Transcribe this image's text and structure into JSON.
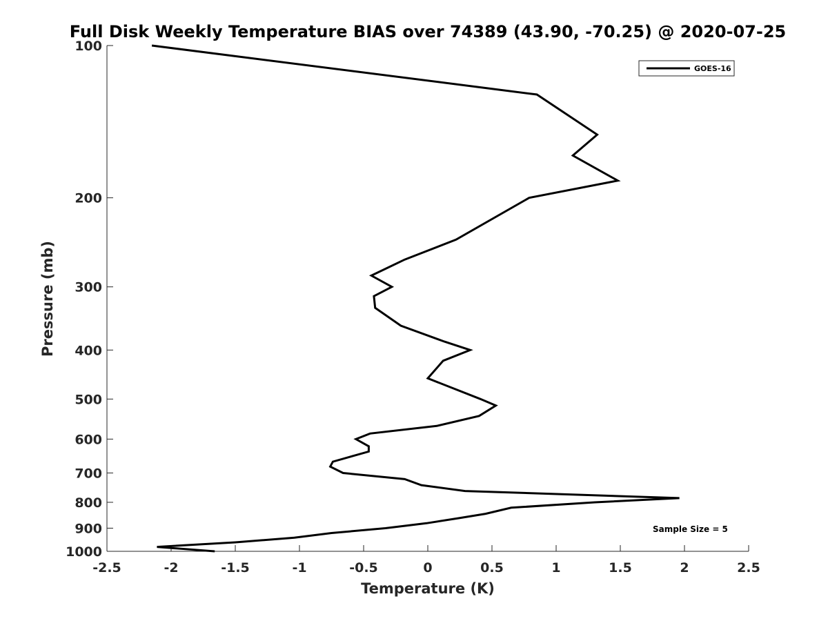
{
  "chart_data": {
    "type": "line",
    "title": "Full Disk Weekly Temperature BIAS over 74389 (43.90, -70.25) @ 2020-07-25",
    "xlabel": "Temperature (K)",
    "ylabel": "Pressure (mb)",
    "xlim": [
      -2.5,
      2.5
    ],
    "ylim": [
      100,
      1000
    ],
    "y_scale": "log",
    "y_reversed": true,
    "grid": false,
    "x_ticks": [
      -2.5,
      -2,
      -1.5,
      -1,
      -0.5,
      0,
      0.5,
      1,
      1.5,
      2,
      2.5
    ],
    "x_tick_labels": [
      "-2.5",
      "-2",
      "-1.5",
      "-1",
      "-0.5",
      "0",
      "0.5",
      "1",
      "1.5",
      "2",
      "2.5"
    ],
    "y_ticks": [
      100,
      200,
      300,
      400,
      500,
      600,
      700,
      800,
      900,
      1000
    ],
    "y_tick_labels": [
      "100",
      "200",
      "300",
      "400",
      "500",
      "600",
      "700",
      "800",
      "900",
      "1000"
    ],
    "legend": {
      "placement": "top-right",
      "entries": [
        "GOES-16"
      ]
    },
    "annotation": "Sample Size = 5",
    "series": [
      {
        "name": "GOES-16",
        "color": "#000000",
        "points": [
          {
            "x": -2.15,
            "y": 100
          },
          {
            "x": 0.85,
            "y": 125
          },
          {
            "x": 1.32,
            "y": 150
          },
          {
            "x": 1.13,
            "y": 165
          },
          {
            "x": 1.48,
            "y": 185
          },
          {
            "x": 0.79,
            "y": 200
          },
          {
            "x": 0.22,
            "y": 242
          },
          {
            "x": -0.18,
            "y": 265
          },
          {
            "x": -0.44,
            "y": 285
          },
          {
            "x": -0.28,
            "y": 300
          },
          {
            "x": -0.42,
            "y": 313
          },
          {
            "x": -0.41,
            "y": 330
          },
          {
            "x": -0.21,
            "y": 358
          },
          {
            "x": 0.13,
            "y": 385
          },
          {
            "x": 0.33,
            "y": 400
          },
          {
            "x": 0.12,
            "y": 420
          },
          {
            "x": 0.0,
            "y": 455
          },
          {
            "x": 0.41,
            "y": 500
          },
          {
            "x": 0.53,
            "y": 515
          },
          {
            "x": 0.4,
            "y": 540
          },
          {
            "x": 0.07,
            "y": 565
          },
          {
            "x": -0.45,
            "y": 585
          },
          {
            "x": -0.56,
            "y": 600
          },
          {
            "x": -0.46,
            "y": 620
          },
          {
            "x": -0.46,
            "y": 635
          },
          {
            "x": -0.74,
            "y": 665
          },
          {
            "x": -0.76,
            "y": 680
          },
          {
            "x": -0.66,
            "y": 700
          },
          {
            "x": -0.18,
            "y": 720
          },
          {
            "x": -0.05,
            "y": 740
          },
          {
            "x": 0.29,
            "y": 760
          },
          {
            "x": 1.96,
            "y": 785
          },
          {
            "x": 1.3,
            "y": 800
          },
          {
            "x": 0.65,
            "y": 820
          },
          {
            "x": 0.45,
            "y": 843
          },
          {
            "x": 0.24,
            "y": 860
          },
          {
            "x": -0.01,
            "y": 880
          },
          {
            "x": -0.33,
            "y": 900
          },
          {
            "x": -0.75,
            "y": 920
          },
          {
            "x": -1.04,
            "y": 940
          },
          {
            "x": -1.5,
            "y": 960
          },
          {
            "x": -2.11,
            "y": 980
          },
          {
            "x": -1.66,
            "y": 1000
          }
        ]
      }
    ]
  }
}
